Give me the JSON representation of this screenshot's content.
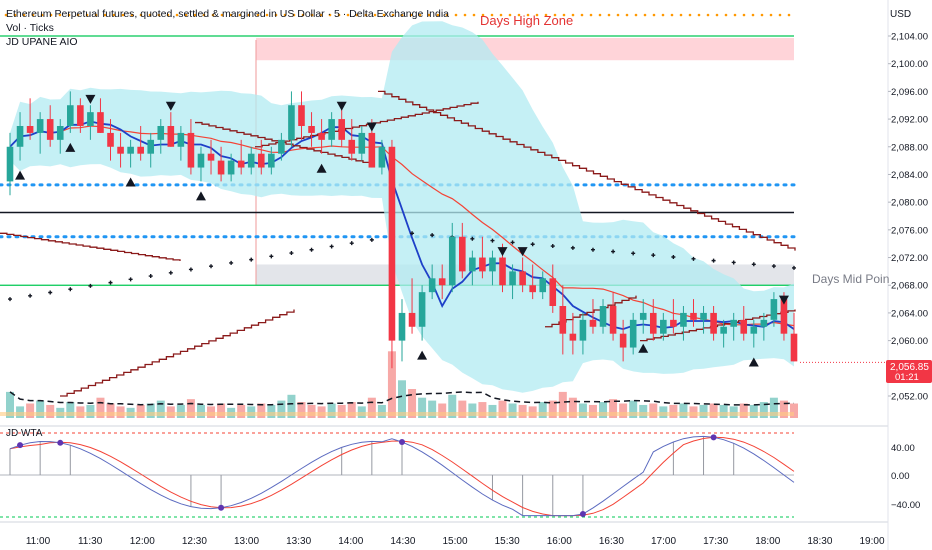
{
  "header": {
    "title": "Ethereum Perpetual futures, quoted, settled & margined in US Dollar · 5 · Delta Exchange India",
    "vol_label": "Vol · Ticks",
    "indicator_label": "JD UPANE AIO"
  },
  "currency": "USD",
  "zones": {
    "days_high_label": "Days High Zone",
    "days_mid_label": "Days Mid Poin"
  },
  "price_badge": {
    "price": "2,056.85",
    "countdown": "01:21"
  },
  "oscillator": {
    "label": "JD WTA",
    "ticks": [
      "40.00",
      "0.00",
      "−40.00"
    ]
  },
  "chart_data": {
    "type": "candlestick",
    "y_axis_ticks": [
      "2,104.00",
      "2,100.00",
      "2,096.00",
      "2,092.00",
      "2,088.00",
      "2,084.00",
      "2,080.00",
      "2,076.00",
      "2,072.00",
      "2,068.00",
      "2,064.00",
      "2,060.00",
      "2,056.00",
      "2,052.00"
    ],
    "x_axis_ticks": [
      "11:00",
      "11:30",
      "12:00",
      "12:30",
      "13:00",
      "13:30",
      "14:00",
      "14:30",
      "15:00",
      "15:30",
      "16:00",
      "16:30",
      "17:00",
      "17:30",
      "18:00",
      "18:30",
      "19:00"
    ],
    "last_price": 2056.85,
    "horizontal_levels": {
      "days_high_zone": [
        2100.5,
        2104
      ],
      "days_mid_zone": [
        2068,
        2071
      ],
      "black_line": 2078.5,
      "blue_dotted": [
        2082.5,
        2075
      ],
      "green_lines": [
        2104,
        2068
      ]
    },
    "candles": [
      [
        2083,
        2090,
        2081,
        2088
      ],
      [
        2088,
        2093,
        2086,
        2091
      ],
      [
        2091,
        2095,
        2089,
        2090
      ],
      [
        2090,
        2093,
        2087,
        2092
      ],
      [
        2092,
        2094,
        2088,
        2089
      ],
      [
        2089,
        2092,
        2087,
        2091
      ],
      [
        2091,
        2096,
        2090,
        2094
      ],
      [
        2094,
        2095,
        2090,
        2091
      ],
      [
        2091,
        2094,
        2089,
        2093
      ],
      [
        2093,
        2095,
        2090,
        2090
      ],
      [
        2090,
        2092,
        2086,
        2088
      ],
      [
        2088,
        2090,
        2085,
        2087
      ],
      [
        2087,
        2089,
        2085,
        2088
      ],
      [
        2088,
        2091,
        2086,
        2087
      ],
      [
        2087,
        2090,
        2085,
        2089
      ],
      [
        2089,
        2092,
        2087,
        2091
      ],
      [
        2091,
        2093,
        2088,
        2088
      ],
      [
        2088,
        2091,
        2086,
        2090
      ],
      [
        2090,
        2092,
        2084,
        2085
      ],
      [
        2085,
        2088,
        2083,
        2087
      ],
      [
        2087,
        2089,
        2084,
        2086
      ],
      [
        2086,
        2088,
        2083,
        2084
      ],
      [
        2084,
        2087,
        2083,
        2086
      ],
      [
        2086,
        2089,
        2084,
        2085
      ],
      [
        2085,
        2088,
        2084,
        2087
      ],
      [
        2087,
        2089,
        2084,
        2085
      ],
      [
        2085,
        2088,
        2084,
        2087
      ],
      [
        2087,
        2090,
        2086,
        2089
      ],
      [
        2089,
        2096,
        2088,
        2094
      ],
      [
        2094,
        2096,
        2089,
        2091
      ],
      [
        2091,
        2093,
        2088,
        2090
      ],
      [
        2090,
        2092,
        2087,
        2089
      ],
      [
        2089,
        2093,
        2088,
        2092
      ],
      [
        2092,
        2094,
        2088,
        2089
      ],
      [
        2089,
        2092,
        2086,
        2087
      ],
      [
        2087,
        2091,
        2086,
        2090
      ],
      [
        2090,
        2092,
        2085,
        2085
      ],
      [
        2085,
        2089,
        2084,
        2088
      ],
      [
        2088,
        2089,
        2056,
        2060
      ],
      [
        2060,
        2066,
        2057,
        2064
      ],
      [
        2064,
        2069,
        2061,
        2062
      ],
      [
        2062,
        2068,
        2060,
        2067
      ],
      [
        2067,
        2071,
        2066,
        2069
      ],
      [
        2069,
        2071,
        2066,
        2068
      ],
      [
        2068,
        2077,
        2067,
        2075
      ],
      [
        2075,
        2077,
        2069,
        2070
      ],
      [
        2070,
        2073,
        2068,
        2072
      ],
      [
        2072,
        2075,
        2069,
        2070
      ],
      [
        2070,
        2073,
        2068,
        2072
      ],
      [
        2072,
        2074,
        2067,
        2068
      ],
      [
        2068,
        2071,
        2066,
        2070
      ],
      [
        2070,
        2072,
        2067,
        2068
      ],
      [
        2068,
        2071,
        2066,
        2067
      ],
      [
        2067,
        2070,
        2066,
        2069
      ],
      [
        2069,
        2071,
        2064,
        2065
      ],
      [
        2065,
        2068,
        2058,
        2061
      ],
      [
        2061,
        2064,
        2058,
        2060
      ],
      [
        2060,
        2064,
        2058,
        2063
      ],
      [
        2063,
        2066,
        2061,
        2062
      ],
      [
        2062,
        2066,
        2061,
        2065
      ],
      [
        2065,
        2067,
        2060,
        2061
      ],
      [
        2061,
        2063,
        2057,
        2059
      ],
      [
        2059,
        2064,
        2058,
        2063
      ],
      [
        2063,
        2066,
        2061,
        2064
      ],
      [
        2064,
        2066,
        2060,
        2061
      ],
      [
        2061,
        2064,
        2060,
        2063
      ],
      [
        2063,
        2066,
        2061,
        2062
      ],
      [
        2062,
        2065,
        2060,
        2064
      ],
      [
        2064,
        2066,
        2062,
        2063
      ],
      [
        2063,
        2065,
        2061,
        2064
      ],
      [
        2064,
        2065,
        2060,
        2061
      ],
      [
        2061,
        2063,
        2059,
        2062
      ],
      [
        2062,
        2064,
        2060,
        2063
      ],
      [
        2063,
        2065,
        2060,
        2061
      ],
      [
        2061,
        2063,
        2059,
        2062
      ],
      [
        2062,
        2064,
        2060,
        2063
      ],
      [
        2063,
        2067,
        2062,
        2066
      ],
      [
        2066,
        2067,
        2060,
        2061
      ],
      [
        2061,
        2064,
        2057,
        2057
      ]
    ],
    "volume": [
      18,
      8,
      10,
      12,
      9,
      7,
      11,
      8,
      9,
      14,
      10,
      8,
      7,
      9,
      10,
      12,
      8,
      9,
      13,
      9,
      8,
      10,
      7,
      9,
      8,
      10,
      9,
      12,
      16,
      11,
      9,
      8,
      10,
      9,
      11,
      8,
      14,
      9,
      46,
      26,
      20,
      14,
      12,
      10,
      16,
      12,
      10,
      11,
      9,
      12,
      10,
      9,
      8,
      11,
      12,
      18,
      14,
      10,
      9,
      11,
      13,
      10,
      12,
      9,
      10,
      8,
      9,
      10,
      8,
      9,
      10,
      9,
      8,
      10,
      9,
      11,
      14,
      12,
      10
    ]
  }
}
